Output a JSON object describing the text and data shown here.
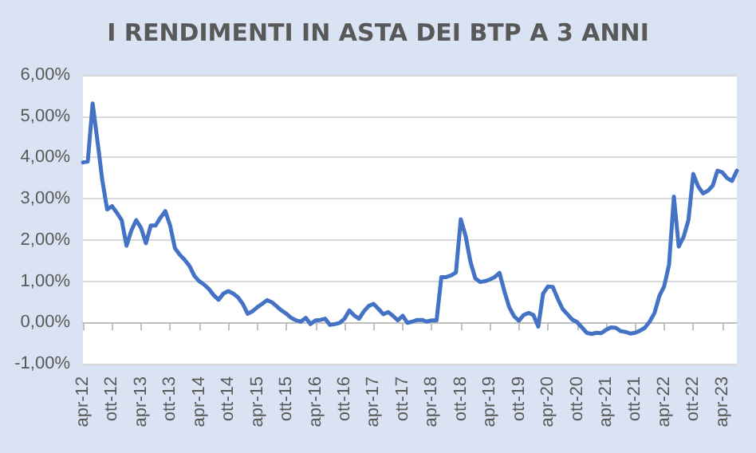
{
  "chart_data": {
    "type": "line",
    "title": "I RENDIMENTI IN ASTA DEI BTP A 3 ANNI",
    "categories": [
      "apr-12",
      null,
      null,
      null,
      null,
      null,
      "ott-12",
      null,
      null,
      null,
      null,
      null,
      "apr-13",
      null,
      null,
      null,
      null,
      null,
      "ott-13",
      null,
      null,
      null,
      null,
      null,
      "apr-14",
      null,
      null,
      null,
      null,
      null,
      "ott-14",
      null,
      null,
      null,
      null,
      null,
      "apr-15",
      null,
      null,
      null,
      null,
      null,
      "ott-15",
      null,
      null,
      null,
      null,
      null,
      "apr-16",
      null,
      null,
      null,
      null,
      null,
      "ott-16",
      null,
      null,
      null,
      null,
      null,
      "apr-17",
      null,
      null,
      null,
      null,
      null,
      "ott-17",
      null,
      null,
      null,
      null,
      null,
      "apr-18",
      null,
      null,
      null,
      null,
      null,
      "ott-18",
      null,
      null,
      null,
      null,
      null,
      "apr-19",
      null,
      null,
      null,
      null,
      null,
      "ott-19",
      null,
      null,
      null,
      null,
      null,
      "apr-20",
      null,
      null,
      null,
      null,
      null,
      "ott-20",
      null,
      null,
      null,
      null,
      null,
      "apr-21",
      null,
      null,
      null,
      null,
      null,
      "ott-21",
      null,
      null,
      null,
      null,
      null,
      "apr-22",
      null,
      null,
      null,
      null,
      null,
      "ott-22",
      null,
      null,
      null,
      null,
      null,
      "apr-23",
      null,
      null,
      null
    ],
    "series": [
      {
        "color": "#4472c4",
        "values": [
          3.88,
          3.9,
          5.31,
          4.4,
          3.45,
          2.74,
          2.82,
          2.66,
          2.48,
          1.86,
          2.23,
          2.48,
          2.29,
          1.92,
          2.35,
          2.35,
          2.54,
          2.7,
          2.35,
          1.8,
          1.64,
          1.52,
          1.37,
          1.13,
          1.0,
          0.92,
          0.81,
          0.66,
          0.55,
          0.7,
          0.76,
          0.7,
          0.61,
          0.45,
          0.21,
          0.27,
          0.37,
          0.45,
          0.54,
          0.49,
          0.39,
          0.29,
          0.21,
          0.11,
          0.05,
          0.02,
          0.11,
          -0.04,
          0.05,
          0.06,
          0.09,
          -0.06,
          -0.04,
          -0.01,
          0.09,
          0.29,
          0.17,
          0.09,
          0.27,
          0.4,
          0.45,
          0.33,
          0.2,
          0.25,
          0.16,
          0.05,
          0.16,
          -0.01,
          0.02,
          0.06,
          0.06,
          0.02,
          0.05,
          0.05,
          1.1,
          1.1,
          1.14,
          1.21,
          2.5,
          2.1,
          1.47,
          1.07,
          0.98,
          1.0,
          1.04,
          1.1,
          1.2,
          0.76,
          0.37,
          0.15,
          0.04,
          0.18,
          0.23,
          0.18,
          -0.1,
          0.7,
          0.87,
          0.86,
          0.58,
          0.33,
          0.2,
          0.07,
          0.01,
          -0.12,
          -0.25,
          -0.28,
          -0.25,
          -0.26,
          -0.18,
          -0.12,
          -0.13,
          -0.21,
          -0.23,
          -0.27,
          -0.25,
          -0.2,
          -0.13,
          0.02,
          0.23,
          0.64,
          0.88,
          1.4,
          3.05,
          1.84,
          2.07,
          2.48,
          3.6,
          3.3,
          3.13,
          3.19,
          3.31,
          3.68,
          3.64,
          3.5,
          3.43,
          3.68
        ]
      }
    ],
    "ylim": [
      -1,
      6
    ],
    "yticks": [
      {
        "value": -1,
        "label": "-1,00%"
      },
      {
        "value": 0,
        "label": "0,00%"
      },
      {
        "value": 1,
        "label": "1,00%"
      },
      {
        "value": 2,
        "label": "2,00%"
      },
      {
        "value": 3,
        "label": "3,00%"
      },
      {
        "value": 4,
        "label": "4,00%"
      },
      {
        "value": 5,
        "label": "5,00%"
      },
      {
        "value": 6,
        "label": "6,00%"
      }
    ],
    "grid": "y",
    "marker": "none",
    "line_style": "solid"
  }
}
